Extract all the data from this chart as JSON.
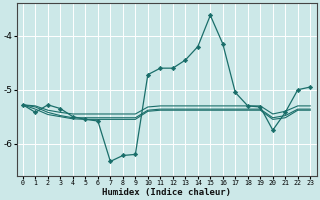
{
  "xlabel": "Humidex (Indice chaleur)",
  "ylabel": "",
  "background_color": "#cce8e8",
  "grid_color": "#ffffff",
  "line_color": "#1a6e6a",
  "xlim": [
    -0.5,
    23.5
  ],
  "ylim": [
    -6.6,
    -3.4
  ],
  "yticks": [
    -6,
    -5,
    -4
  ],
  "xticks": [
    0,
    1,
    2,
    3,
    4,
    5,
    6,
    7,
    8,
    9,
    10,
    11,
    12,
    13,
    14,
    15,
    16,
    17,
    18,
    19,
    20,
    21,
    22,
    23
  ],
  "series": [
    {
      "x": [
        0,
        1,
        2,
        3,
        4,
        5,
        6,
        7,
        8,
        9,
        10,
        11,
        12,
        13,
        14,
        15,
        16,
        17,
        18,
        19,
        20,
        21,
        22,
        23
      ],
      "y": [
        -5.28,
        -5.42,
        -5.28,
        -5.35,
        -5.5,
        -5.55,
        -5.58,
        -6.33,
        -6.22,
        -6.2,
        -4.72,
        -4.6,
        -4.6,
        -4.45,
        -4.2,
        -3.62,
        -4.15,
        -5.05,
        -5.3,
        -5.32,
        -5.75,
        -5.42,
        -5.0,
        -4.95
      ],
      "marker": true
    },
    {
      "x": [
        0,
        1,
        2,
        3,
        4,
        5,
        6,
        7,
        8,
        9,
        10,
        11,
        12,
        13,
        14,
        15,
        16,
        17,
        18,
        19,
        20,
        21,
        22,
        23
      ],
      "y": [
        -5.28,
        -5.3,
        -5.38,
        -5.42,
        -5.45,
        -5.45,
        -5.45,
        -5.45,
        -5.45,
        -5.45,
        -5.32,
        -5.3,
        -5.3,
        -5.3,
        -5.3,
        -5.3,
        -5.3,
        -5.3,
        -5.3,
        -5.3,
        -5.45,
        -5.4,
        -5.3,
        -5.3
      ],
      "marker": false
    },
    {
      "x": [
        0,
        1,
        2,
        3,
        4,
        5,
        6,
        7,
        8,
        9,
        10,
        11,
        12,
        13,
        14,
        15,
        16,
        17,
        18,
        19,
        20,
        21,
        22,
        23
      ],
      "y": [
        -5.28,
        -5.32,
        -5.42,
        -5.48,
        -5.52,
        -5.52,
        -5.52,
        -5.52,
        -5.52,
        -5.52,
        -5.38,
        -5.36,
        -5.36,
        -5.36,
        -5.36,
        -5.36,
        -5.36,
        -5.36,
        -5.36,
        -5.36,
        -5.52,
        -5.48,
        -5.36,
        -5.36
      ],
      "marker": false
    },
    {
      "x": [
        0,
        1,
        2,
        3,
        4,
        5,
        6,
        7,
        8,
        9,
        10,
        11,
        12,
        13,
        14,
        15,
        16,
        17,
        18,
        19,
        20,
        21,
        22,
        23
      ],
      "y": [
        -5.28,
        -5.36,
        -5.46,
        -5.5,
        -5.54,
        -5.55,
        -5.55,
        -5.55,
        -5.55,
        -5.55,
        -5.4,
        -5.38,
        -5.38,
        -5.38,
        -5.38,
        -5.38,
        -5.38,
        -5.38,
        -5.38,
        -5.38,
        -5.55,
        -5.52,
        -5.38,
        -5.38
      ],
      "marker": false
    }
  ]
}
